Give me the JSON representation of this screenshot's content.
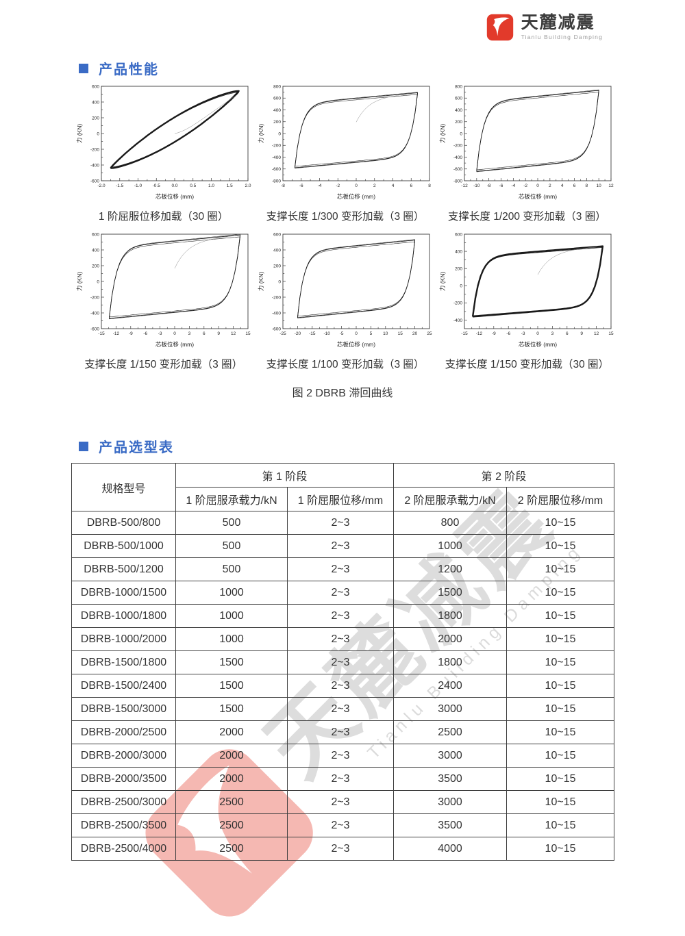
{
  "colors": {
    "accent_blue": "#3a6bc5",
    "logo_red": "#e23a2b",
    "watermark_pink": "#e8574a",
    "watermark_gray": "#c9c9c9",
    "table_border": "#3f3f3f"
  },
  "logo": {
    "brand_cn": "天麓减震",
    "brand_en": "Tianlu Building Damping"
  },
  "sections": [
    {
      "id": "performance",
      "title": "产品性能"
    },
    {
      "id": "selection",
      "title": "产品选型表"
    }
  ],
  "figure_caption": "图 2 DBRB 滞回曲线",
  "chart_data": [
    {
      "type": "line",
      "caption": "1 阶屈服位移加载（30 圈）",
      "xlabel": "芯板位移 (mm)",
      "ylabel": "力 (KN)",
      "xlim": [
        -2.0,
        2.0
      ],
      "ylim": [
        -600,
        600
      ],
      "xticks": [
        "-2.0",
        "-1.5",
        "-1.0",
        "-0.5",
        "0.0",
        "0.5",
        "1.0",
        "1.5",
        "2.0"
      ],
      "yticks": [
        "-600",
        "-400",
        "-200",
        "0",
        "200",
        "400",
        "600"
      ],
      "loop": {
        "shape": "lens",
        "x_max": 1.75,
        "f_max": 540,
        "f_min": -440,
        "cycles": 30,
        "initial": true
      }
    },
    {
      "type": "line",
      "caption": "支撑长度 1/300 变形加载（3 圈）",
      "xlabel": "芯板位移 (mm)",
      "ylabel": "力 (KN)",
      "xlim": [
        -8,
        8
      ],
      "ylim": [
        -800,
        800
      ],
      "xticks": [
        "-8",
        "-6",
        "-4",
        "-2",
        "0",
        "2",
        "4",
        "6",
        "8"
      ],
      "yticks": [
        "-800",
        "-600",
        "-400",
        "-200",
        "0",
        "200",
        "400",
        "600",
        "800"
      ],
      "loop": {
        "shape": "flag",
        "x_max": 6.7,
        "f_max": 690,
        "f_min": -580,
        "cycles": 3,
        "initial": true
      }
    },
    {
      "type": "line",
      "caption": "支撑长度 1/200 变形加载（3 圈）",
      "xlabel": "芯板位移 (mm)",
      "ylabel": "力 (KN)",
      "xlim": [
        -12,
        12
      ],
      "ylim": [
        -800,
        800
      ],
      "xticks": [
        "-12",
        "-10",
        "-8",
        "-6",
        "-4",
        "-2",
        "0",
        "2",
        "4",
        "6",
        "8",
        "10",
        "12"
      ],
      "yticks": [
        "-800",
        "-600",
        "-400",
        "-200",
        "0",
        "200",
        "400",
        "600",
        "800"
      ],
      "loop": {
        "shape": "flag",
        "x_max": 10,
        "f_max": 730,
        "f_min": -640,
        "cycles": 3,
        "initial": false
      }
    },
    {
      "type": "line",
      "caption": "支撑长度 1/150 变形加载（3 圈）",
      "xlabel": "芯板位移 (mm)",
      "ylabel": "力 (KN)",
      "xlim": [
        -15,
        15
      ],
      "ylim": [
        -600,
        600
      ],
      "xticks": [
        "-15",
        "-12",
        "-9",
        "-6",
        "-3",
        "0",
        "3",
        "6",
        "9",
        "12",
        "15"
      ],
      "yticks": [
        "-600",
        "-400",
        "-200",
        "0",
        "200",
        "400",
        "600"
      ],
      "loop": {
        "shape": "flag",
        "x_max": 13.4,
        "f_max": 590,
        "f_min": -470,
        "cycles": 3,
        "initial": true
      }
    },
    {
      "type": "line",
      "caption": "支撑长度 1/100 变形加载（3 圈）",
      "xlabel": "芯板位移 (mm)",
      "ylabel": "力 (KN)",
      "xlim": [
        -25,
        25
      ],
      "ylim": [
        -600,
        600
      ],
      "xticks": [
        "-25",
        "-20",
        "-15",
        "-10",
        "-5",
        "0",
        "5",
        "10",
        "15",
        "20",
        "25"
      ],
      "yticks": [
        "-600",
        "-400",
        "-200",
        "0",
        "200",
        "400",
        "600"
      ],
      "loop": {
        "shape": "flag",
        "x_max": 20,
        "f_max": 525,
        "f_min": -460,
        "cycles": 3,
        "initial": false
      }
    },
    {
      "type": "line",
      "caption": "支撑长度 1/150 变形加载（30 圈）",
      "xlabel": "芯板位移 (mm)",
      "ylabel": "力 (KN)",
      "xlim": [
        -15,
        15
      ],
      "ylim": [
        -500,
        600
      ],
      "xticks": [
        "-15",
        "-12",
        "-9",
        "-6",
        "-3",
        "0",
        "3",
        "6",
        "9",
        "12",
        "15"
      ],
      "yticks": [
        "-400",
        "-200",
        "0",
        "200",
        "400",
        "600"
      ],
      "loop": {
        "shape": "flag",
        "x_max": 13.3,
        "f_max": 460,
        "f_min": -360,
        "cycles": 30,
        "initial": true
      }
    }
  ],
  "table": {
    "model_header": "规格型号",
    "stage1_header": "第 1 阶段",
    "stage2_header": "第 2 阶段",
    "sub_headers": [
      "1 阶屈服承载力/kN",
      "1 阶屈服位移/mm",
      "2 阶屈服承载力/kN",
      "2 阶屈服位移/mm"
    ],
    "rows": [
      [
        "DBRB-500/800",
        "500",
        "2~3",
        "800",
        "10~15"
      ],
      [
        "DBRB-500/1000",
        "500",
        "2~3",
        "1000",
        "10~15"
      ],
      [
        "DBRB-500/1200",
        "500",
        "2~3",
        "1200",
        "10~15"
      ],
      [
        "DBRB-1000/1500",
        "1000",
        "2~3",
        "1500",
        "10~15"
      ],
      [
        "DBRB-1000/1800",
        "1000",
        "2~3",
        "1800",
        "10~15"
      ],
      [
        "DBRB-1000/2000",
        "1000",
        "2~3",
        "2000",
        "10~15"
      ],
      [
        "DBRB-1500/1800",
        "1500",
        "2~3",
        "1800",
        "10~15"
      ],
      [
        "DBRB-1500/2400",
        "1500",
        "2~3",
        "2400",
        "10~15"
      ],
      [
        "DBRB-1500/3000",
        "1500",
        "2~3",
        "3000",
        "10~15"
      ],
      [
        "DBRB-2000/2500",
        "2000",
        "2~3",
        "2500",
        "10~15"
      ],
      [
        "DBRB-2000/3000",
        "2000",
        "2~3",
        "3000",
        "10~15"
      ],
      [
        "DBRB-2000/3500",
        "2000",
        "2~3",
        "3500",
        "10~15"
      ],
      [
        "DBRB-2500/3000",
        "2500",
        "2~3",
        "3000",
        "10~15"
      ],
      [
        "DBRB-2500/3500",
        "2500",
        "2~3",
        "3500",
        "10~15"
      ],
      [
        "DBRB-2500/4000",
        "2500",
        "2~3",
        "4000",
        "10~15"
      ]
    ]
  },
  "watermark": {
    "cn": "天麓减震",
    "en": "Tianlu Building Damping"
  }
}
